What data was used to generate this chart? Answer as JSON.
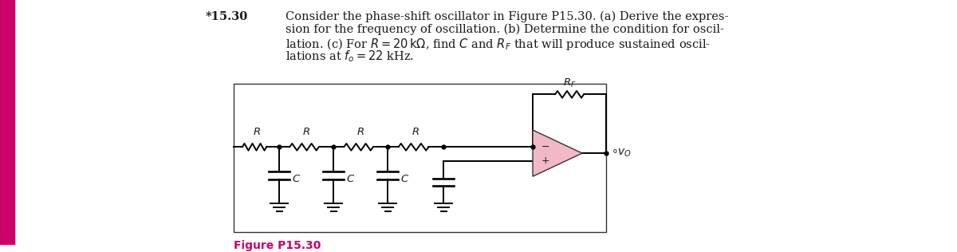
{
  "title_num": "*15.30",
  "text_lines": [
    "Consider the phase-shift oscillator in Figure P15.30. (a) Derive the expres-",
    "sion for the frequency of oscillation. (b) Determine the condition for oscil-",
    "lation. (c) For R = 20 kΩ, find C and R",
    "lations at f"
  ],
  "figure_label": "Figure P15.30",
  "figure_label_color": "#cc0066",
  "background_color": "#ffffff",
  "left_bar_color": "#cc0066",
  "opamp_fill": "#f2b8c6",
  "wire_color": "#000000",
  "text_color": "#1a1a1a"
}
